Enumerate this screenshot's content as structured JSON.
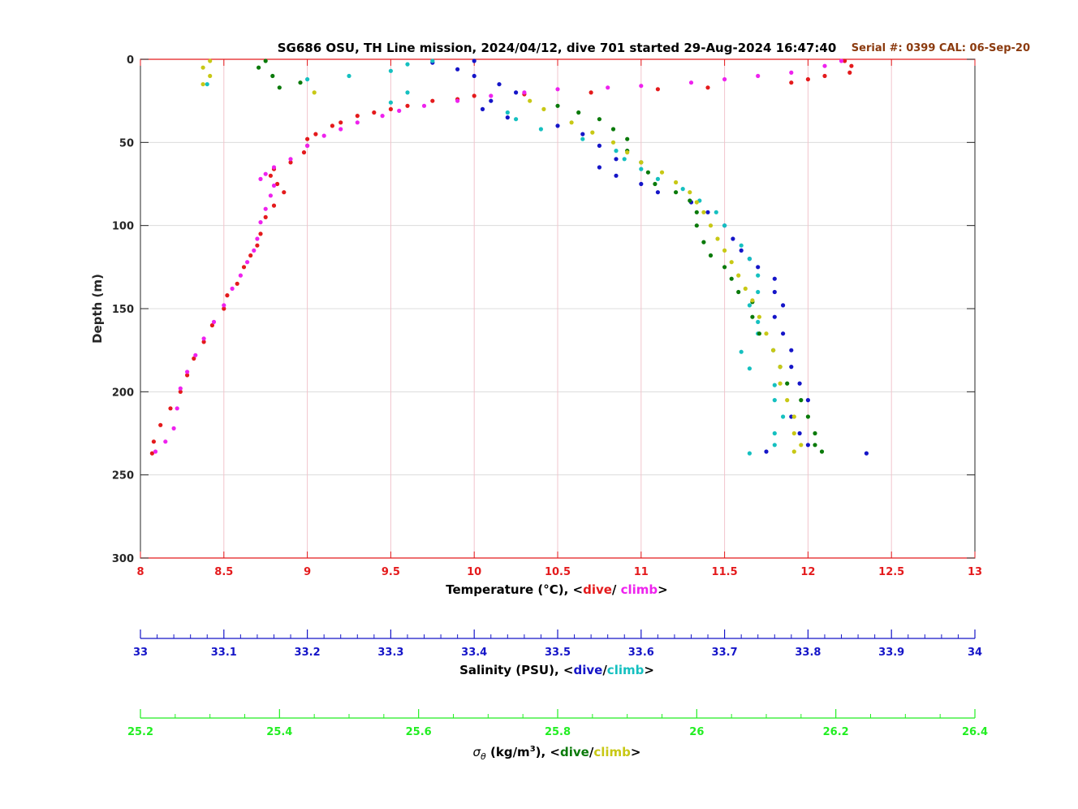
{
  "chart_data": {
    "type": "scatter",
    "title": "SG686 OSU, TH Line mission, 2024/04/12, dive 701 started 29-Aug-2024 16:47:40",
    "serial_text": "Serial #: 0399  CAL: 06-Sep-20",
    "ylabel": "Depth (m)",
    "ylim": [
      0,
      300
    ],
    "yticks": [
      "0",
      "50",
      "100",
      "150",
      "200",
      "250",
      "300"
    ],
    "grid": true,
    "axes": {
      "temperature": {
        "label_prefix": "Temperature (°C), <",
        "label_dive": "dive",
        "label_sep": "/ ",
        "label_climb": "climb",
        "label_suffix": ">",
        "xlim": [
          8,
          13
        ],
        "ticks": [
          "8",
          "8.5",
          "9",
          "9.5",
          "10",
          "10.5",
          "11",
          "11.5",
          "12",
          "12.5",
          "13"
        ],
        "color": "#e41a1c"
      },
      "salinity": {
        "label_prefix": "Salinity (PSU), <",
        "label_dive": "dive",
        "label_sep": "/",
        "label_climb": "climb",
        "label_suffix": ">",
        "xlim": [
          33,
          34
        ],
        "ticks": [
          "33",
          "33.1",
          "33.2",
          "33.3",
          "33.4",
          "33.5",
          "33.6",
          "33.7",
          "33.8",
          "33.9",
          "34"
        ],
        "color": "#1515c8"
      },
      "density": {
        "label_sigma": "σ",
        "label_theta": "θ",
        "label_units_pre": " (kg/m",
        "label_units_exp": "3",
        "label_units_post": "), <",
        "label_dive": "dive",
        "label_sep": "/",
        "label_climb": "climb",
        "label_suffix": ">",
        "xlim": [
          25.2,
          26.4
        ],
        "ticks": [
          "25.2",
          "25.4",
          "25.6",
          "25.8",
          "26",
          "26.2",
          "26.4"
        ],
        "color": "#22ee22"
      }
    },
    "series": [
      {
        "axis": "temperature",
        "color": "#e41a1c",
        "points": [
          [
            12.22,
            1
          ],
          [
            12.26,
            4
          ],
          [
            12.25,
            8
          ],
          [
            12.1,
            10
          ],
          [
            12.0,
            12
          ],
          [
            11.9,
            14
          ],
          [
            11.4,
            17
          ],
          [
            11.1,
            18
          ],
          [
            10.7,
            20
          ],
          [
            10.3,
            21
          ],
          [
            10.0,
            22
          ],
          [
            9.9,
            24
          ],
          [
            9.75,
            25
          ],
          [
            9.6,
            28
          ],
          [
            9.5,
            30
          ],
          [
            9.4,
            32
          ],
          [
            9.3,
            34
          ],
          [
            9.2,
            38
          ],
          [
            9.15,
            40
          ],
          [
            9.05,
            45
          ],
          [
            9.0,
            48
          ],
          [
            9.0,
            52
          ],
          [
            8.98,
            56
          ],
          [
            8.9,
            62
          ],
          [
            8.8,
            66
          ],
          [
            8.78,
            70
          ],
          [
            8.82,
            75
          ],
          [
            8.86,
            80
          ],
          [
            8.8,
            88
          ],
          [
            8.75,
            95
          ],
          [
            8.72,
            105
          ],
          [
            8.7,
            112
          ],
          [
            8.66,
            118
          ],
          [
            8.62,
            125
          ],
          [
            8.58,
            135
          ],
          [
            8.52,
            142
          ],
          [
            8.5,
            150
          ],
          [
            8.43,
            160
          ],
          [
            8.38,
            170
          ],
          [
            8.32,
            180
          ],
          [
            8.28,
            190
          ],
          [
            8.24,
            200
          ],
          [
            8.18,
            210
          ],
          [
            8.12,
            220
          ],
          [
            8.08,
            230
          ],
          [
            8.07,
            237
          ]
        ]
      },
      {
        "axis": "temperature",
        "color": "#ee22ee",
        "points": [
          [
            12.2,
            1
          ],
          [
            12.1,
            4
          ],
          [
            11.9,
            8
          ],
          [
            11.7,
            10
          ],
          [
            11.5,
            12
          ],
          [
            11.3,
            14
          ],
          [
            11.0,
            16
          ],
          [
            10.8,
            17
          ],
          [
            10.5,
            18
          ],
          [
            10.3,
            20
          ],
          [
            10.1,
            22
          ],
          [
            9.9,
            25
          ],
          [
            9.7,
            28
          ],
          [
            9.55,
            31
          ],
          [
            9.45,
            34
          ],
          [
            9.3,
            38
          ],
          [
            9.2,
            42
          ],
          [
            9.1,
            46
          ],
          [
            9.0,
            52
          ],
          [
            8.9,
            60
          ],
          [
            8.8,
            65
          ],
          [
            8.75,
            69
          ],
          [
            8.72,
            72
          ],
          [
            8.8,
            76
          ],
          [
            8.78,
            82
          ],
          [
            8.75,
            90
          ],
          [
            8.72,
            98
          ],
          [
            8.7,
            108
          ],
          [
            8.68,
            115
          ],
          [
            8.64,
            122
          ],
          [
            8.6,
            130
          ],
          [
            8.55,
            138
          ],
          [
            8.5,
            148
          ],
          [
            8.44,
            158
          ],
          [
            8.38,
            168
          ],
          [
            8.33,
            178
          ],
          [
            8.28,
            188
          ],
          [
            8.24,
            198
          ],
          [
            8.22,
            210
          ],
          [
            8.2,
            222
          ],
          [
            8.15,
            230
          ],
          [
            8.09,
            236
          ]
        ]
      },
      {
        "axis": "salinity",
        "color": "#1515c8",
        "points": [
          [
            33.4,
            1
          ],
          [
            33.35,
            2
          ],
          [
            33.38,
            6
          ],
          [
            33.4,
            10
          ],
          [
            33.43,
            15
          ],
          [
            33.45,
            20
          ],
          [
            33.42,
            25
          ],
          [
            33.41,
            30
          ],
          [
            33.44,
            35
          ],
          [
            33.5,
            40
          ],
          [
            33.53,
            45
          ],
          [
            33.55,
            52
          ],
          [
            33.57,
            60
          ],
          [
            33.55,
            65
          ],
          [
            33.57,
            70
          ],
          [
            33.6,
            75
          ],
          [
            33.62,
            80
          ],
          [
            33.66,
            86
          ],
          [
            33.68,
            92
          ],
          [
            33.7,
            100
          ],
          [
            33.71,
            108
          ],
          [
            33.72,
            115
          ],
          [
            33.73,
            120
          ],
          [
            33.74,
            125
          ],
          [
            33.76,
            132
          ],
          [
            33.76,
            140
          ],
          [
            33.77,
            148
          ],
          [
            33.76,
            155
          ],
          [
            33.77,
            165
          ],
          [
            33.78,
            175
          ],
          [
            33.78,
            185
          ],
          [
            33.79,
            195
          ],
          [
            33.8,
            205
          ],
          [
            33.78,
            215
          ],
          [
            33.79,
            225
          ],
          [
            33.8,
            232
          ],
          [
            33.75,
            236
          ],
          [
            33.87,
            237
          ]
        ]
      },
      {
        "axis": "salinity",
        "color": "#15c0c0",
        "points": [
          [
            33.08,
            15
          ],
          [
            33.2,
            12
          ],
          [
            33.25,
            10
          ],
          [
            33.3,
            7
          ],
          [
            33.32,
            3
          ],
          [
            33.35,
            1
          ],
          [
            33.32,
            20
          ],
          [
            33.3,
            26
          ],
          [
            33.44,
            32
          ],
          [
            33.45,
            36
          ],
          [
            33.48,
            42
          ],
          [
            33.53,
            48
          ],
          [
            33.57,
            55
          ],
          [
            33.58,
            60
          ],
          [
            33.6,
            66
          ],
          [
            33.62,
            72
          ],
          [
            33.65,
            78
          ],
          [
            33.67,
            85
          ],
          [
            33.69,
            92
          ],
          [
            33.7,
            100
          ],
          [
            33.72,
            112
          ],
          [
            33.73,
            120
          ],
          [
            33.74,
            130
          ],
          [
            33.74,
            140
          ],
          [
            33.73,
            148
          ],
          [
            33.74,
            158
          ],
          [
            33.74,
            165
          ],
          [
            33.72,
            176
          ],
          [
            33.73,
            186
          ],
          [
            33.76,
            196
          ],
          [
            33.76,
            205
          ],
          [
            33.77,
            215
          ],
          [
            33.76,
            225
          ],
          [
            33.76,
            232
          ],
          [
            33.73,
            237
          ]
        ]
      },
      {
        "axis": "density",
        "color": "#0a7a0a",
        "points": [
          [
            25.38,
            1
          ],
          [
            25.37,
            5
          ],
          [
            25.39,
            10
          ],
          [
            25.43,
            14
          ],
          [
            25.4,
            17
          ],
          [
            25.8,
            28
          ],
          [
            25.83,
            32
          ],
          [
            25.86,
            36
          ],
          [
            25.88,
            42
          ],
          [
            25.9,
            48
          ],
          [
            25.9,
            55
          ],
          [
            25.92,
            62
          ],
          [
            25.93,
            68
          ],
          [
            25.94,
            75
          ],
          [
            25.97,
            80
          ],
          [
            25.99,
            85
          ],
          [
            26.0,
            92
          ],
          [
            26.0,
            100
          ],
          [
            26.01,
            110
          ],
          [
            26.02,
            118
          ],
          [
            26.04,
            125
          ],
          [
            26.05,
            132
          ],
          [
            26.06,
            140
          ],
          [
            26.08,
            146
          ],
          [
            26.08,
            155
          ],
          [
            26.09,
            165
          ],
          [
            26.11,
            175
          ],
          [
            26.12,
            185
          ],
          [
            26.13,
            195
          ],
          [
            26.15,
            205
          ],
          [
            26.16,
            215
          ],
          [
            26.17,
            225
          ],
          [
            26.17,
            232
          ],
          [
            26.18,
            236
          ]
        ]
      },
      {
        "axis": "density",
        "color": "#c8c815",
        "points": [
          [
            25.3,
            1
          ],
          [
            25.29,
            5
          ],
          [
            25.3,
            10
          ],
          [
            25.29,
            15
          ],
          [
            25.45,
            20
          ],
          [
            25.76,
            25
          ],
          [
            25.78,
            30
          ],
          [
            25.82,
            38
          ],
          [
            25.85,
            44
          ],
          [
            25.88,
            50
          ],
          [
            25.9,
            56
          ],
          [
            25.92,
            62
          ],
          [
            25.95,
            68
          ],
          [
            25.97,
            74
          ],
          [
            25.99,
            80
          ],
          [
            26.0,
            86
          ],
          [
            26.01,
            92
          ],
          [
            26.02,
            100
          ],
          [
            26.03,
            108
          ],
          [
            26.04,
            115
          ],
          [
            26.05,
            122
          ],
          [
            26.06,
            130
          ],
          [
            26.07,
            138
          ],
          [
            26.08,
            145
          ],
          [
            26.09,
            155
          ],
          [
            26.1,
            165
          ],
          [
            26.11,
            175
          ],
          [
            26.12,
            185
          ],
          [
            26.12,
            195
          ],
          [
            26.13,
            205
          ],
          [
            26.14,
            215
          ],
          [
            26.14,
            225
          ],
          [
            26.15,
            232
          ],
          [
            26.14,
            236
          ]
        ]
      }
    ]
  }
}
